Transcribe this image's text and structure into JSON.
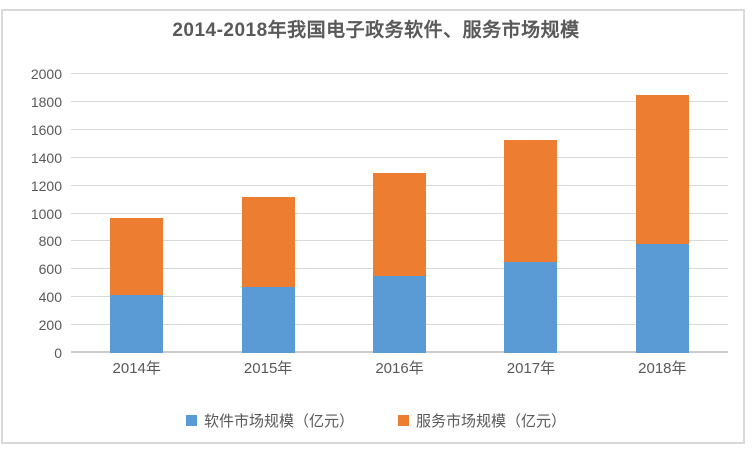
{
  "title": "2014-2018年我国电子政务软件、服务市场规模",
  "colors": {
    "software_series": "#5b9bd5",
    "service_series": "#ed7d31",
    "gridline": "#d9d9d9",
    "axis_line": "#cccccc",
    "text": "#595959",
    "chart_border": "#d9d9d9",
    "background": "#ffffff"
  },
  "chart_data": {
    "type": "bar",
    "stacked": true,
    "title": "2014-2018年我国电子政务软件、服务市场规模",
    "categories": [
      "2014年",
      "2015年",
      "2016年",
      "2017年",
      "2018年"
    ],
    "series": [
      {
        "name": "软件市场规模（亿元）",
        "color": "#5b9bd5",
        "values": [
          415,
          470,
          550,
          650,
          780
        ]
      },
      {
        "name": "服务市场规模（亿元）",
        "color": "#ed7d31",
        "values": [
          550,
          645,
          740,
          875,
          1070
        ]
      }
    ],
    "stacked_totals": [
      965,
      1115,
      1290,
      1525,
      1850
    ],
    "xlabel": "",
    "ylabel": "",
    "ylim": [
      0,
      2000
    ],
    "yticks": [
      0,
      200,
      400,
      600,
      800,
      1000,
      1200,
      1400,
      1600,
      1800,
      2000
    ],
    "grid": true,
    "legend_position": "bottom"
  }
}
